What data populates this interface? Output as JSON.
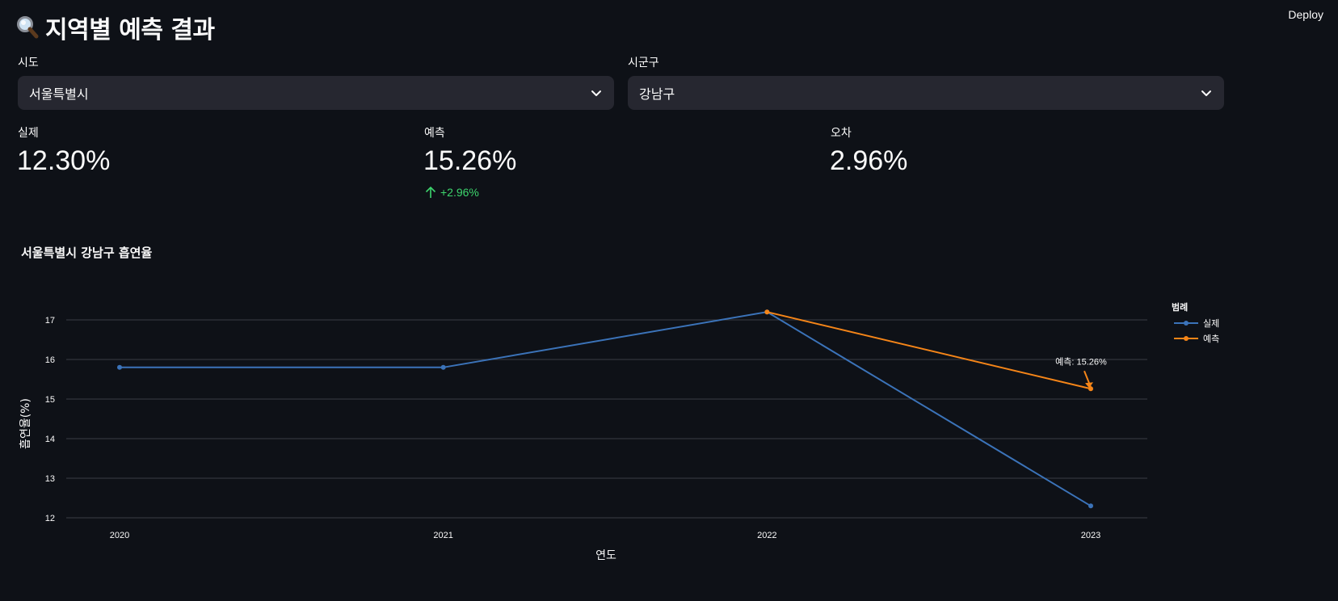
{
  "header": {
    "title": "지역별 예측 결과",
    "title_icon": "magnifier-icon",
    "deploy_label": "Deploy"
  },
  "filters": {
    "sido": {
      "label": "시도",
      "value": "서울특별시"
    },
    "sigungu": {
      "label": "시군구",
      "value": "강남구"
    }
  },
  "metrics": {
    "actual": {
      "label": "실제",
      "value": "12.30%"
    },
    "predicted": {
      "label": "예측",
      "value": "15.26%",
      "delta": "+2.96%"
    },
    "error": {
      "label": "오차",
      "value": "2.96%"
    }
  },
  "colors": {
    "background": "#0e1117",
    "select_bg": "#262730",
    "delta_positive": "#3dd56d",
    "series_actual": "#3b73b9",
    "series_predicted": "#f58518",
    "grid": "#3a3d45"
  },
  "chart_data": {
    "type": "line",
    "title": "서울특별시 강남구 흡연율",
    "xlabel": "연도",
    "ylabel": "흡연율(%)",
    "x": [
      "2020",
      "2021",
      "2022",
      "2023"
    ],
    "ylim": [
      12,
      17.5
    ],
    "yticks": [
      12,
      13,
      14,
      15,
      16,
      17
    ],
    "grid": true,
    "legend_title": "범례",
    "legend_position": "right",
    "series": [
      {
        "name": "실제",
        "x": [
          "2020",
          "2021",
          "2022",
          "2023"
        ],
        "values": [
          15.8,
          15.8,
          17.2,
          12.3
        ]
      },
      {
        "name": "예측",
        "x": [
          "2022",
          "2023"
        ],
        "values": [
          17.2,
          15.26
        ]
      }
    ],
    "annotations": [
      {
        "text": "예측: 15.26%",
        "x": "2023",
        "y": 15.26
      }
    ]
  }
}
